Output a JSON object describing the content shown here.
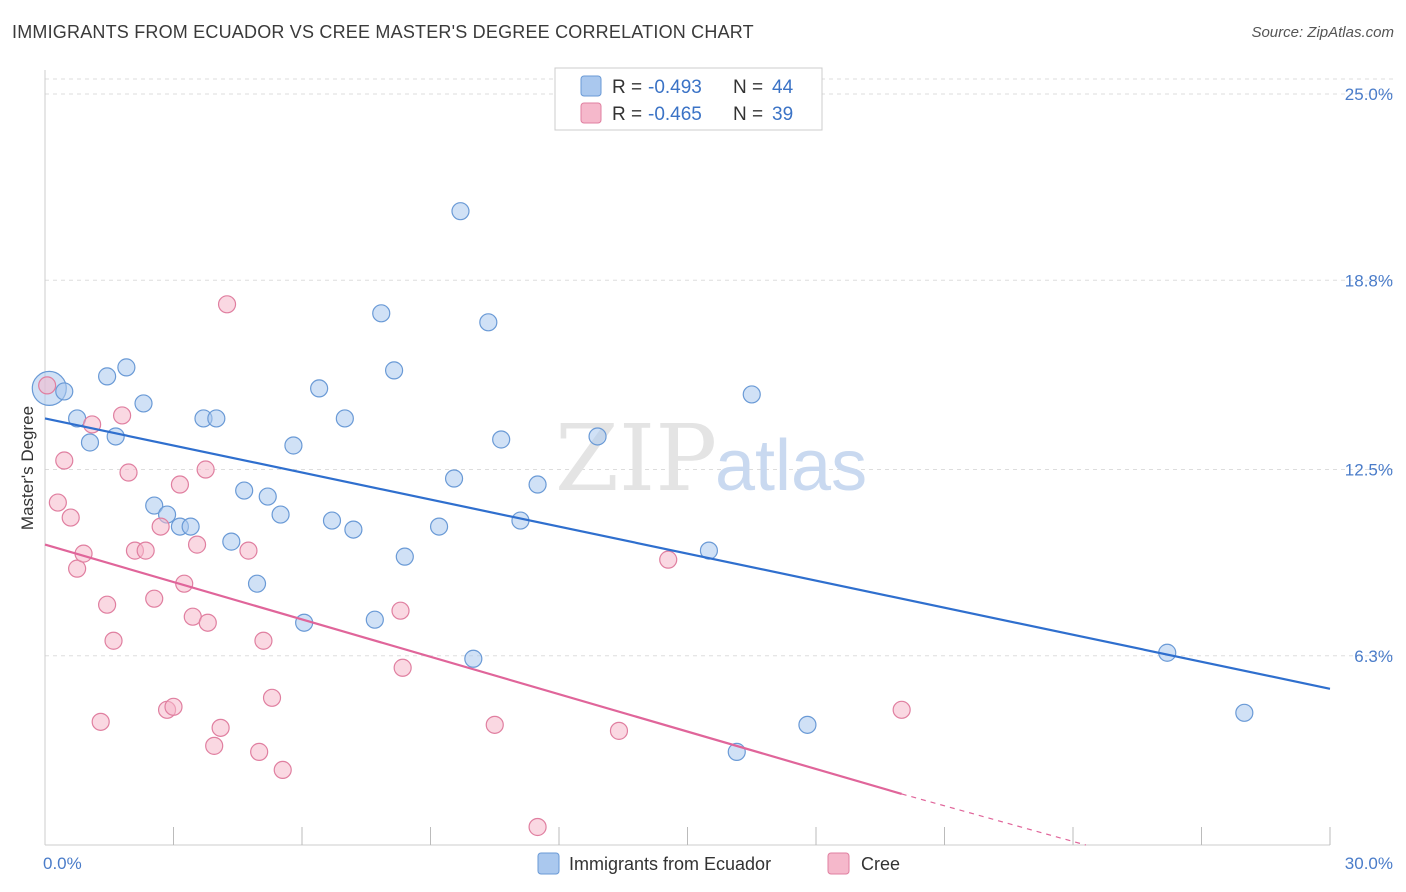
{
  "title": "IMMIGRANTS FROM ECUADOR VS CREE MASTER'S DEGREE CORRELATION CHART",
  "source": "Source: ZipAtlas.com",
  "watermark": {
    "zip": "ZIP",
    "atlas": "atlas"
  },
  "legend_box": [
    {
      "r_label": "R =",
      "r_value": "-0.493",
      "n_label": "N =",
      "n_value": "44"
    },
    {
      "r_label": "R =",
      "r_value": "-0.465",
      "n_label": "N =",
      "n_value": "39"
    }
  ],
  "colors": {
    "blue_fill": "#aac8ee",
    "blue_stroke": "#6a9ad6",
    "blue_line": "#2f6fce",
    "pink_fill": "#f5b8cb",
    "pink_stroke": "#e07fa0",
    "pink_line": "#e0659a",
    "grid": "#dddddd",
    "tick_text": "#4a7cc9"
  },
  "chart_data": {
    "type": "scatter",
    "title": "IMMIGRANTS FROM ECUADOR VS CREE MASTER'S DEGREE CORRELATION CHART",
    "xlabel": "",
    "ylabel": "Master's Degree",
    "xlim": [
      0,
      30
    ],
    "ylim": [
      0,
      25.8
    ],
    "x_tick_labels": [
      "0.0%",
      "30.0%"
    ],
    "y_ticks": [
      6.3,
      12.5,
      18.8,
      25.0
    ],
    "y_tick_labels": [
      "6.3%",
      "12.5%",
      "18.8%",
      "25.0%"
    ],
    "grid": "horizontal dashed",
    "legend_position": "bottom-center",
    "series": [
      {
        "name": "Immigrants from Ecuador",
        "r": -0.493,
        "n": 44,
        "trend": {
          "x": [
            0,
            30
          ],
          "y": [
            14.2,
            5.2
          ]
        },
        "points": [
          {
            "x": 0.1,
            "y": 15.2,
            "big": true
          },
          {
            "x": 0.45,
            "y": 15.1
          },
          {
            "x": 0.75,
            "y": 14.2
          },
          {
            "x": 1.05,
            "y": 13.4
          },
          {
            "x": 1.45,
            "y": 15.6
          },
          {
            "x": 1.65,
            "y": 13.6
          },
          {
            "x": 1.9,
            "y": 15.9
          },
          {
            "x": 2.3,
            "y": 14.7
          },
          {
            "x": 2.55,
            "y": 11.3
          },
          {
            "x": 2.85,
            "y": 11.0
          },
          {
            "x": 3.15,
            "y": 10.6
          },
          {
            "x": 3.4,
            "y": 10.6
          },
          {
            "x": 3.7,
            "y": 14.2
          },
          {
            "x": 4.0,
            "y": 14.2
          },
          {
            "x": 4.35,
            "y": 10.1
          },
          {
            "x": 4.65,
            "y": 11.8
          },
          {
            "x": 4.95,
            "y": 8.7
          },
          {
            "x": 5.2,
            "y": 11.6
          },
          {
            "x": 5.5,
            "y": 11.0
          },
          {
            "x": 5.8,
            "y": 13.3
          },
          {
            "x": 6.05,
            "y": 7.4
          },
          {
            "x": 6.4,
            "y": 15.2
          },
          {
            "x": 6.7,
            "y": 10.8
          },
          {
            "x": 7.0,
            "y": 14.2
          },
          {
            "x": 7.2,
            "y": 10.5
          },
          {
            "x": 7.7,
            "y": 7.5
          },
          {
            "x": 7.85,
            "y": 17.7
          },
          {
            "x": 8.15,
            "y": 15.8
          },
          {
            "x": 8.4,
            "y": 9.6
          },
          {
            "x": 9.2,
            "y": 10.6
          },
          {
            "x": 9.55,
            "y": 12.2
          },
          {
            "x": 9.7,
            "y": 21.1
          },
          {
            "x": 10.0,
            "y": 6.2
          },
          {
            "x": 10.35,
            "y": 17.4
          },
          {
            "x": 10.65,
            "y": 13.5
          },
          {
            "x": 11.1,
            "y": 10.8
          },
          {
            "x": 11.5,
            "y": 12.0
          },
          {
            "x": 12.9,
            "y": 13.6
          },
          {
            "x": 15.5,
            "y": 9.8
          },
          {
            "x": 16.15,
            "y": 3.1
          },
          {
            "x": 16.5,
            "y": 15.0
          },
          {
            "x": 17.8,
            "y": 4.0
          },
          {
            "x": 26.2,
            "y": 6.4
          },
          {
            "x": 28.0,
            "y": 4.4
          }
        ]
      },
      {
        "name": "Cree",
        "r": -0.465,
        "n": 39,
        "trend": {
          "x": [
            0,
            20.0
          ],
          "y": [
            10.0,
            1.7
          ]
        },
        "trend_dashed": {
          "x": [
            20.0,
            24.3
          ],
          "y": [
            1.7,
            0.0
          ]
        },
        "points": [
          {
            "x": 0.05,
            "y": 15.3
          },
          {
            "x": 0.3,
            "y": 11.4
          },
          {
            "x": 0.45,
            "y": 12.8
          },
          {
            "x": 0.6,
            "y": 10.9
          },
          {
            "x": 0.75,
            "y": 9.2
          },
          {
            "x": 0.9,
            "y": 9.7
          },
          {
            "x": 1.1,
            "y": 14.0
          },
          {
            "x": 1.3,
            "y": 4.1
          },
          {
            "x": 1.45,
            "y": 8.0
          },
          {
            "x": 1.6,
            "y": 6.8
          },
          {
            "x": 1.8,
            "y": 14.3
          },
          {
            "x": 1.95,
            "y": 12.4
          },
          {
            "x": 2.1,
            "y": 9.8
          },
          {
            "x": 2.35,
            "y": 9.8
          },
          {
            "x": 2.55,
            "y": 8.2
          },
          {
            "x": 2.7,
            "y": 10.6
          },
          {
            "x": 2.85,
            "y": 4.5
          },
          {
            "x": 3.0,
            "y": 4.6
          },
          {
            "x": 3.15,
            "y": 12.0
          },
          {
            "x": 3.25,
            "y": 8.7
          },
          {
            "x": 3.45,
            "y": 7.6
          },
          {
            "x": 3.55,
            "y": 10.0
          },
          {
            "x": 3.75,
            "y": 12.5
          },
          {
            "x": 3.8,
            "y": 7.4
          },
          {
            "x": 3.95,
            "y": 3.3
          },
          {
            "x": 4.1,
            "y": 3.9
          },
          {
            "x": 4.25,
            "y": 18.0
          },
          {
            "x": 4.75,
            "y": 9.8
          },
          {
            "x": 5.0,
            "y": 3.1
          },
          {
            "x": 5.1,
            "y": 6.8
          },
          {
            "x": 5.3,
            "y": 4.9
          },
          {
            "x": 5.55,
            "y": 2.5
          },
          {
            "x": 8.3,
            "y": 7.8
          },
          {
            "x": 8.35,
            "y": 5.9
          },
          {
            "x": 10.5,
            "y": 4.0
          },
          {
            "x": 11.5,
            "y": 0.6
          },
          {
            "x": 13.4,
            "y": 3.8
          },
          {
            "x": 14.55,
            "y": 9.5
          },
          {
            "x": 20.0,
            "y": 4.5
          }
        ]
      }
    ]
  }
}
